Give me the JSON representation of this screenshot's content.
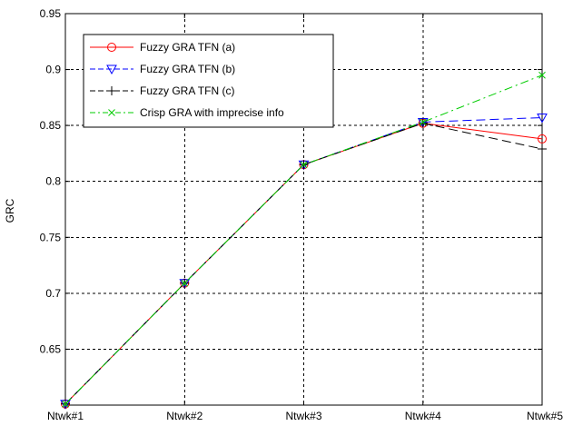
{
  "chart_data": {
    "type": "line",
    "categories": [
      "Ntwk#1",
      "Ntwk#2",
      "Ntwk#3",
      "Ntwk#4",
      "Ntwk#5"
    ],
    "xlabel": "",
    "ylabel": "GRC",
    "ylim": [
      0.6,
      0.95
    ],
    "yticks": [
      "0.65",
      "0.7",
      "0.75",
      "0.8",
      "0.85",
      "0.9",
      "0.95"
    ],
    "grid": true,
    "grid_style": "dashed",
    "legend_position": "top-left",
    "series": [
      {
        "name": "Fuzzy GRA TFN (a)",
        "values": [
          0.601,
          0.709,
          0.815,
          0.852,
          0.838
        ],
        "color": "#ff0000",
        "line_style": "solid",
        "marker": "circle"
      },
      {
        "name": "Fuzzy GRA TFN (b)",
        "values": [
          0.601,
          0.709,
          0.815,
          0.853,
          0.857
        ],
        "color": "#0000ff",
        "line_style": "dashed",
        "marker": "triangle-down"
      },
      {
        "name": "Fuzzy GRA TFN (c)",
        "values": [
          0.601,
          0.709,
          0.815,
          0.852,
          0.829
        ],
        "color": "#000000",
        "line_style": "dashed",
        "marker": "plus"
      },
      {
        "name": "Crisp GRA with imprecise info",
        "values": [
          0.601,
          0.709,
          0.815,
          0.853,
          0.895
        ],
        "color": "#00cc00",
        "line_style": "dash-dot",
        "marker": "x"
      }
    ]
  }
}
